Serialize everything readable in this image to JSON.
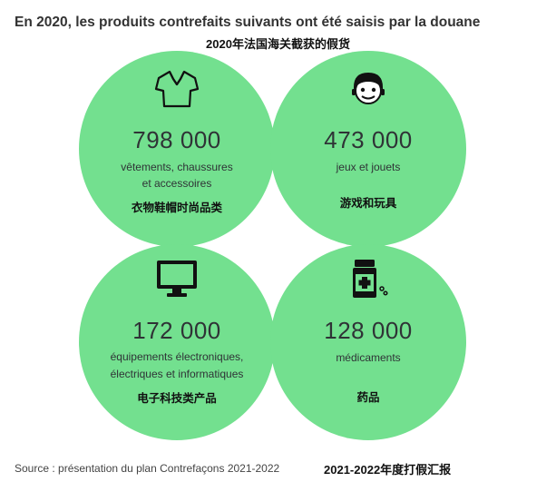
{
  "title": "En 2020, les produits contrefaits suivants ont été saisis par la douane",
  "subtitle": "2020年法国海关截获的假货",
  "items": [
    {
      "icon": "tshirt-icon",
      "number": "798 000",
      "desc1": "vêtements, chaussures",
      "desc2": "et accessoires",
      "cn": "衣物鞋帽时尚品类"
    },
    {
      "icon": "toy-figure-icon",
      "number": "473 000",
      "desc1": "jeux et jouets",
      "desc2": "",
      "cn": "游戏和玩具"
    },
    {
      "icon": "monitor-icon",
      "number": "172 000",
      "desc1": "équipements électroniques,",
      "desc2": "électriques et informatiques",
      "cn": "电子科技类产品"
    },
    {
      "icon": "medicine-bottle-icon",
      "number": "128 000",
      "desc1": "médicaments",
      "desc2": "",
      "cn": "药品"
    }
  ],
  "source": "Source : présentation du plan Contrefaçons 2021-2022",
  "source_cn": "2021-2022年度打假汇报",
  "colors": {
    "circle": "#73e08f",
    "text": "#2f3336"
  }
}
